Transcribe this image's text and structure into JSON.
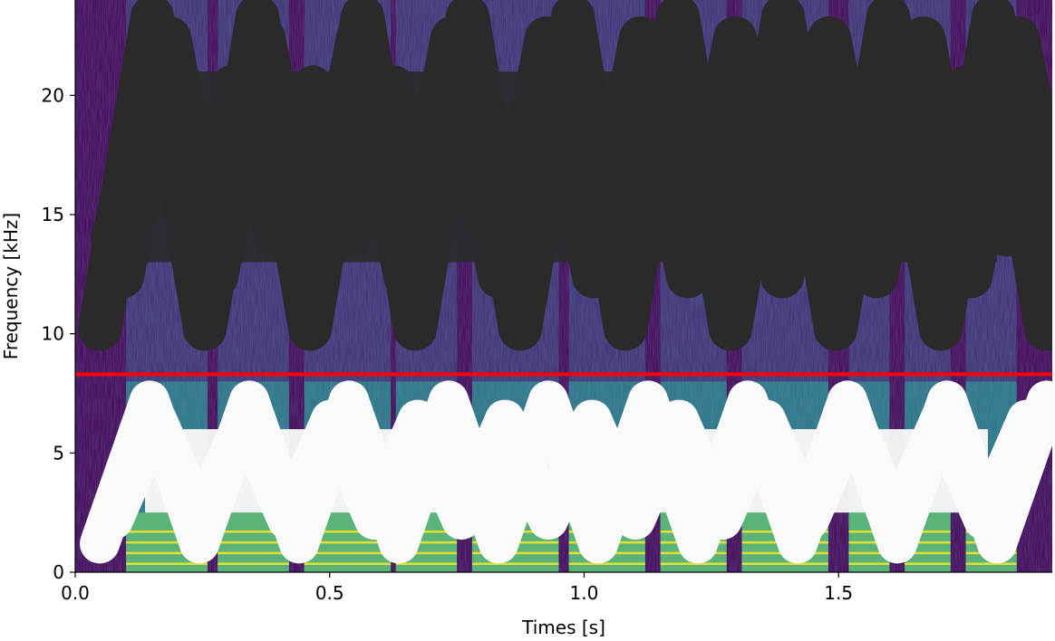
{
  "chart_data": {
    "type": "heatmap",
    "title": "",
    "xlabel": "Times [s]",
    "ylabel": "Frequency [kHz]",
    "xlim": [
      0.0,
      1.92
    ],
    "ylim": [
      0,
      24
    ],
    "x_ticks": [
      {
        "value": 0.0,
        "label": "0.0"
      },
      {
        "value": 0.5,
        "label": "0.5"
      },
      {
        "value": 1.0,
        "label": "1.0"
      },
      {
        "value": 1.5,
        "label": "1.5"
      }
    ],
    "y_ticks": [
      {
        "value": 0,
        "label": "0"
      },
      {
        "value": 5,
        "label": "5"
      },
      {
        "value": 10,
        "label": "10"
      },
      {
        "value": 15,
        "label": "15"
      },
      {
        "value": 20,
        "label": "20"
      }
    ],
    "colormap": "viridis",
    "reference_line": {
      "frequency_khz": 8.3,
      "color": "#ff0000"
    },
    "speech_segments": [
      [
        0.1,
        0.26
      ],
      [
        0.28,
        0.42
      ],
      [
        0.45,
        0.62
      ],
      [
        0.63,
        0.75
      ],
      [
        0.78,
        0.95
      ],
      [
        0.97,
        1.12
      ],
      [
        1.15,
        1.28
      ],
      [
        1.31,
        1.48
      ],
      [
        1.52,
        1.6
      ],
      [
        1.63,
        1.72
      ],
      [
        1.75,
        1.85
      ]
    ],
    "colors": {
      "background": "#440154",
      "low": "#3b528b",
      "mid": "#21918c",
      "high": "#5ec962",
      "peak": "#fde725",
      "redaction_dark": "#2a2a2a",
      "redaction_light": "#fafafa"
    }
  }
}
